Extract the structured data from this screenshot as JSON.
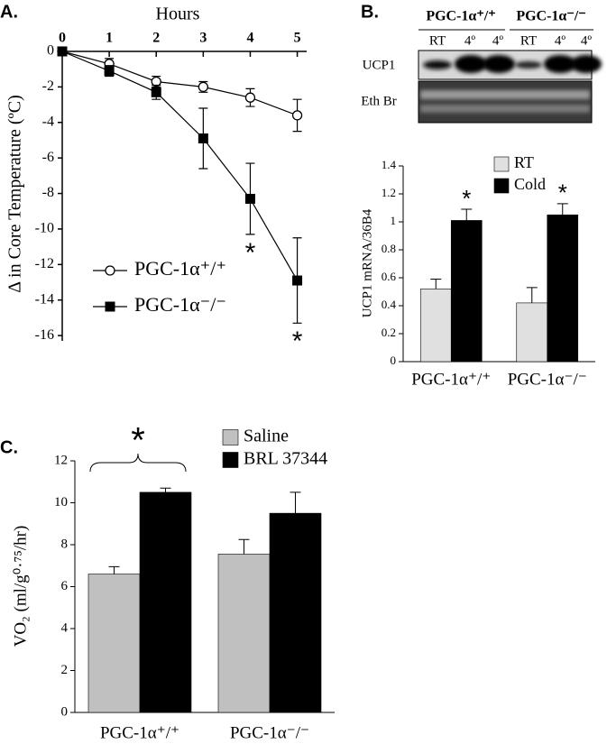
{
  "chart_data": [
    {
      "type": "line",
      "panel": "A.",
      "x_label": "Hours",
      "y_label": "Δ in Core Temperature (ºC)",
      "x": [
        0,
        1,
        2,
        3,
        4,
        5
      ],
      "xlim": [
        0,
        5.2
      ],
      "xticks": [
        0,
        1,
        2,
        3,
        4,
        5
      ],
      "ylim": [
        -16.3,
        0
      ],
      "yticks": [
        0,
        -2,
        -4,
        -6,
        -8,
        -10,
        -12,
        -14,
        -16
      ],
      "series": [
        {
          "name": "PGC-1α⁺/⁺",
          "color": "#000000",
          "marker": "open-circle",
          "values": [
            0,
            -0.7,
            -1.7,
            -2.0,
            -2.6,
            -3.6
          ],
          "errors": [
            0,
            0.3,
            0.3,
            0.3,
            0.5,
            0.9
          ]
        },
        {
          "name": "PGC-1α⁻/⁻",
          "color": "#000000",
          "marker": "filled-square",
          "values": [
            0,
            -1.1,
            -2.3,
            -4.9,
            -8.3,
            -12.9
          ],
          "errors": [
            0,
            0.3,
            0.4,
            1.7,
            2.0,
            2.4
          ]
        }
      ],
      "annotations": [
        "*",
        "*"
      ],
      "legend": "lower left"
    },
    {
      "type": "bar",
      "panel": "B.",
      "y_label": "UCP1 mRNA/36B4",
      "categories": [
        "PGC-1α⁺/⁺",
        "PGC-1α⁻/⁻"
      ],
      "ylim": [
        0,
        1.4
      ],
      "yticks": [
        0,
        0.2,
        0.4,
        0.6,
        0.8,
        1,
        1.2,
        1.4
      ],
      "series": [
        {
          "name": "RT",
          "color": "#e0e0e0",
          "values": [
            0.52,
            0.42
          ],
          "errors": [
            0.07,
            0.11
          ]
        },
        {
          "name": "Cold",
          "color": "#000000",
          "values": [
            1.01,
            1.05
          ],
          "errors": [
            0.08,
            0.08
          ]
        }
      ],
      "annotations": [
        "*",
        "*"
      ],
      "legend": "upper right"
    },
    {
      "type": "bar",
      "panel": "C.",
      "y_label": "VO₂ (ml/g⁰·⁷⁵/hr)",
      "categories": [
        "PGC-1α⁺/⁺",
        "PGC-1α⁻/⁻"
      ],
      "ylim": [
        0,
        12
      ],
      "yticks": [
        0,
        2,
        4,
        6,
        8,
        10,
        12
      ],
      "series": [
        {
          "name": "Saline",
          "color": "#c0c0c0",
          "values": [
            6.6,
            7.55
          ],
          "errors": [
            0.35,
            0.7
          ]
        },
        {
          "name": "BRL 37344",
          "color": "#000000",
          "values": [
            10.5,
            9.5
          ],
          "errors": [
            0.2,
            1.0
          ]
        }
      ],
      "annotations": [
        "*"
      ],
      "legend": "upper right"
    }
  ],
  "blot": {
    "groups": [
      "PGC-1α⁺/⁺",
      "PGC-1α⁻/⁻"
    ],
    "lanes": [
      "RT",
      "4º",
      "4º",
      "RT",
      "4º",
      "4º"
    ],
    "rows": [
      "UCP1",
      "Eth Br"
    ]
  }
}
